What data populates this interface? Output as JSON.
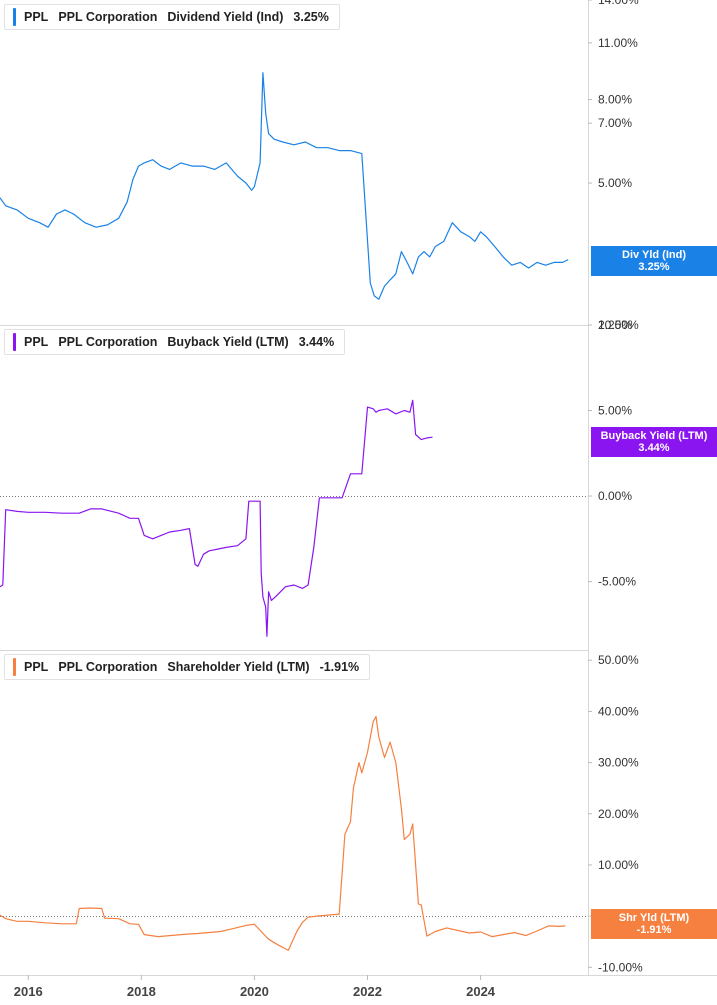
{
  "x_axis": {
    "labels": [
      "2016",
      "2018",
      "2020",
      "2022",
      "2024"
    ],
    "values": [
      2016,
      2018,
      2020,
      2022,
      2024
    ],
    "range": [
      2015.5,
      2025.9
    ]
  },
  "panels": [
    {
      "legend": {
        "ticker": "PPL",
        "company": "PPL Corporation",
        "metric": "Dividend Yield (Ind)",
        "value": "3.25%"
      },
      "tag": {
        "label": "Div Yld (Ind)",
        "value": "3.25%"
      }
    },
    {
      "legend": {
        "ticker": "PPL",
        "company": "PPL Corporation",
        "metric": "Buyback Yield (LTM)",
        "value": "3.44%"
      },
      "tag": {
        "label": "Buyback Yield (LTM)",
        "value": "3.44%"
      }
    },
    {
      "legend": {
        "ticker": "PPL",
        "company": "PPL Corporation",
        "metric": "Shareholder Yield (LTM)",
        "value": "-1.91%"
      },
      "tag": {
        "label": "Shr Yld (LTM)",
        "value": "-1.91%"
      }
    }
  ],
  "colors": {
    "dividend": "#1a82e6",
    "buyback": "#8a15f0",
    "shareholder": "#f58040",
    "grid": "#999999",
    "divider": "#d8d8d8"
  },
  "chart_data": [
    {
      "type": "line",
      "series": [
        {
          "name": "Dividend Yield (Ind)",
          "color": "#1a82e6",
          "x": [
            2015.5,
            2015.6,
            2015.8,
            2016.0,
            2016.2,
            2016.35,
            2016.5,
            2016.65,
            2016.8,
            2017.0,
            2017.2,
            2017.4,
            2017.6,
            2017.75,
            2017.85,
            2017.95,
            2018.05,
            2018.2,
            2018.35,
            2018.5,
            2018.7,
            2018.9,
            2019.1,
            2019.3,
            2019.5,
            2019.7,
            2019.85,
            2019.95,
            2020.0,
            2020.1,
            2020.15,
            2020.2,
            2020.25,
            2020.35,
            2020.5,
            2020.7,
            2020.9,
            2021.1,
            2021.3,
            2021.5,
            2021.7,
            2021.9,
            2022.05,
            2022.12,
            2022.2,
            2022.3,
            2022.4,
            2022.5,
            2022.6,
            2022.7,
            2022.8,
            2022.9,
            2023.0,
            2023.1,
            2023.2,
            2023.35,
            2023.5,
            2023.65,
            2023.8,
            2023.9,
            2024.0,
            2024.1,
            2024.25,
            2024.4,
            2024.55,
            2024.7,
            2024.85,
            2025.0,
            2025.15,
            2025.3,
            2025.45,
            2025.55
          ],
          "y": [
            4.6,
            4.4,
            4.3,
            4.1,
            4.0,
            3.9,
            4.2,
            4.3,
            4.2,
            4.0,
            3.9,
            3.95,
            4.1,
            4.5,
            5.1,
            5.5,
            5.6,
            5.7,
            5.5,
            5.4,
            5.6,
            5.5,
            5.5,
            5.4,
            5.6,
            5.2,
            5.0,
            4.8,
            4.9,
            5.6,
            9.3,
            7.4,
            6.6,
            6.4,
            6.3,
            6.2,
            6.3,
            6.1,
            6.1,
            6.0,
            6.0,
            5.9,
            2.85,
            2.65,
            2.6,
            2.8,
            2.9,
            3.0,
            3.4,
            3.2,
            3.0,
            3.3,
            3.4,
            3.3,
            3.5,
            3.6,
            4.0,
            3.8,
            3.7,
            3.6,
            3.8,
            3.7,
            3.5,
            3.3,
            3.15,
            3.2,
            3.1,
            3.2,
            3.15,
            3.2,
            3.2,
            3.25
          ]
        }
      ],
      "y_ticks": [
        2.25,
        5.0,
        7.0,
        8.0,
        11.0,
        14.0
      ],
      "y_tick_labels": [
        "2.25%",
        "5.00%",
        "7.00%",
        "8.00%",
        "11.00%",
        "14.00%"
      ],
      "ylim": [
        2.25,
        14.0
      ],
      "scale": "log"
    },
    {
      "type": "line",
      "series": [
        {
          "name": "Buyback Yield (LTM)",
          "color": "#8a15f0",
          "x": [
            2015.5,
            2015.55,
            2015.6,
            2015.8,
            2016.0,
            2016.3,
            2016.6,
            2016.9,
            2017.1,
            2017.3,
            2017.6,
            2017.8,
            2017.95,
            2018.05,
            2018.2,
            2018.35,
            2018.5,
            2018.7,
            2018.85,
            2018.95,
            2019.0,
            2019.1,
            2019.2,
            2019.35,
            2019.5,
            2019.7,
            2019.85,
            2019.9,
            2019.95,
            2020.1,
            2020.12,
            2020.15,
            2020.2,
            2020.22,
            2020.25,
            2020.3,
            2020.4,
            2020.55,
            2020.7,
            2020.85,
            2020.95,
            2021.05,
            2021.15,
            2021.3,
            2021.45,
            2021.55,
            2021.7,
            2021.85,
            2021.9,
            2022.0,
            2022.1,
            2022.15,
            2022.2,
            2022.35,
            2022.5,
            2022.65,
            2022.75,
            2022.8,
            2022.85,
            2022.95,
            2023.05,
            2023.15
          ],
          "y": [
            -5.3,
            -5.2,
            -0.8,
            -0.9,
            -0.95,
            -0.95,
            -1.0,
            -1.0,
            -0.75,
            -0.75,
            -1.0,
            -1.3,
            -1.3,
            -2.3,
            -2.5,
            -2.3,
            -2.1,
            -2.0,
            -1.9,
            -4.0,
            -4.1,
            -3.4,
            -3.2,
            -3.1,
            -3.0,
            -2.9,
            -2.5,
            -0.3,
            -0.3,
            -0.3,
            -4.5,
            -5.9,
            -6.5,
            -8.2,
            -5.6,
            -6.1,
            -5.8,
            -5.3,
            -5.2,
            -5.4,
            -5.2,
            -3.0,
            -0.1,
            -0.1,
            -0.1,
            -0.1,
            1.3,
            1.3,
            1.3,
            5.2,
            5.1,
            4.9,
            5.0,
            5.1,
            4.8,
            5.0,
            4.9,
            5.6,
            3.6,
            3.3,
            3.4,
            3.44
          ]
        }
      ],
      "y_ticks": [
        -5.0,
        0.0,
        5.0,
        10.0
      ],
      "y_tick_labels": [
        "-5.00%",
        "0.00%",
        "5.00%",
        "10.00%"
      ],
      "ylim": [
        -9.0,
        10.0
      ]
    },
    {
      "type": "line",
      "series": [
        {
          "name": "Shareholder Yield (LTM)",
          "color": "#f58040",
          "x": [
            2015.5,
            2015.6,
            2015.8,
            2016.0,
            2016.3,
            2016.6,
            2016.85,
            2016.9,
            2017.1,
            2017.3,
            2017.35,
            2017.6,
            2017.8,
            2017.95,
            2018.05,
            2018.3,
            2018.5,
            2018.8,
            2019.0,
            2019.2,
            2019.4,
            2019.6,
            2019.85,
            2020.0,
            2020.12,
            2020.25,
            2020.4,
            2020.6,
            2020.75,
            2020.85,
            2020.95,
            2021.1,
            2021.3,
            2021.5,
            2021.6,
            2021.7,
            2021.75,
            2021.85,
            2021.9,
            2022.0,
            2022.1,
            2022.15,
            2022.2,
            2022.3,
            2022.4,
            2022.5,
            2022.6,
            2022.65,
            2022.75,
            2022.8,
            2022.9,
            2022.95,
            2023.05,
            2023.2,
            2023.4,
            2023.6,
            2023.8,
            2024.0,
            2024.2,
            2024.4,
            2024.6,
            2024.8,
            2025.0,
            2025.2,
            2025.4,
            2025.5
          ],
          "y": [
            0.2,
            -0.5,
            -1.0,
            -1.0,
            -1.3,
            -1.5,
            -1.5,
            1.5,
            1.6,
            1.5,
            -0.4,
            -0.5,
            -1.5,
            -1.6,
            -3.6,
            -4.0,
            -3.8,
            -3.5,
            -3.4,
            -3.2,
            -3.0,
            -2.5,
            -1.8,
            -1.6,
            -3.0,
            -4.5,
            -5.5,
            -6.7,
            -3.0,
            -1.2,
            -0.2,
            0.0,
            0.2,
            0.4,
            16.0,
            18.5,
            25.0,
            30.0,
            28.0,
            32.0,
            38.0,
            39.0,
            35.0,
            31.0,
            34.0,
            30.0,
            21.0,
            15.0,
            16.0,
            18.0,
            2.4,
            2.2,
            -3.9,
            -3.0,
            -2.3,
            -2.8,
            -3.3,
            -3.1,
            -4.0,
            -3.6,
            -3.2,
            -3.8,
            -2.9,
            -1.9,
            -2.0,
            -1.91
          ]
        }
      ],
      "y_ticks": [
        -10.0,
        0.0,
        10.0,
        20.0,
        30.0,
        40.0,
        50.0
      ],
      "y_tick_labels": [
        "-10.00%",
        "0.00%",
        "10.00%",
        "20.00%",
        "30.00%",
        "40.00%",
        "50.00%"
      ],
      "ylim": [
        -11.5,
        52.0
      ]
    }
  ]
}
